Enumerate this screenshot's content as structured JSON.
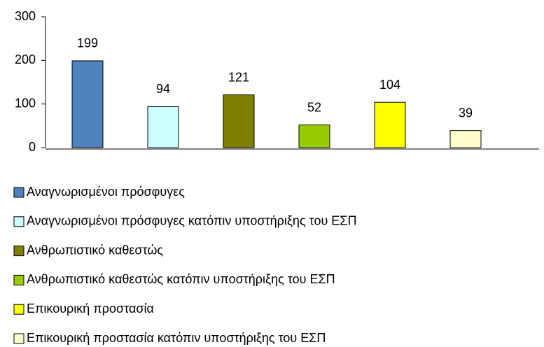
{
  "chart_data": {
    "type": "bar",
    "series": [
      {
        "name": "Αναγνωρισμένοι πρόσφυγες",
        "color": "#4f81bd",
        "values": [
          199
        ]
      },
      {
        "name": "Αναγνωρισμένοι πρόσφυγες κατόπιν υποστήριξης του ΕΣΠ",
        "color": "#ccffff",
        "values": [
          94
        ]
      },
      {
        "name": "Ανθρωπιστικό καθεστώς",
        "color": "#808000",
        "values": [
          121
        ]
      },
      {
        "name": "Ανθρωπιστικό καθεστώς κατόπιν υποστήριξης του ΕΣΠ",
        "color": "#99cc00",
        "values": [
          52
        ]
      },
      {
        "name": "Επικουρική προστασία",
        "color": "#ffff00",
        "values": [
          104
        ]
      },
      {
        "name": "Επικουρική προστασία κατόπιν υποστήριξης του ΕΣΠ",
        "color": "#ffffcc",
        "values": [
          39
        ]
      }
    ],
    "ylim": [
      0,
      300
    ],
    "yticks": [
      0,
      100,
      200,
      300
    ],
    "legend": "bottom"
  }
}
